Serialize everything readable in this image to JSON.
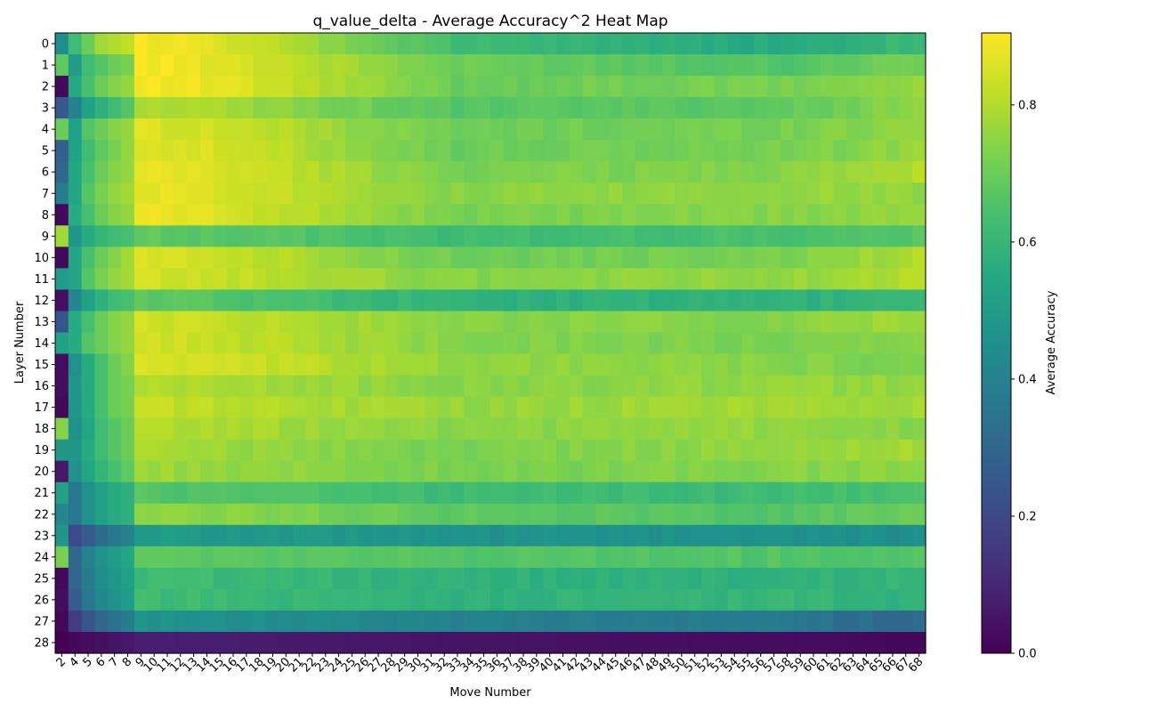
{
  "chart_data": {
    "type": "heatmap",
    "title": "q_value_delta - Average Accuracy^2 Heat Map",
    "xlabel": "Move Number",
    "ylabel": "Layer Number",
    "x_categories": [
      "2",
      "4",
      "5",
      "6",
      "7",
      "8",
      "9",
      "10",
      "11",
      "12",
      "13",
      "14",
      "15",
      "16",
      "17",
      "18",
      "19",
      "20",
      "21",
      "22",
      "23",
      "24",
      "25",
      "26",
      "27",
      "28",
      "29",
      "30",
      "31",
      "32",
      "33",
      "34",
      "35",
      "36",
      "37",
      "38",
      "39",
      "40",
      "41",
      "42",
      "43",
      "44",
      "45",
      "46",
      "47",
      "48",
      "49",
      "50",
      "51",
      "52",
      "53",
      "54",
      "55",
      "56",
      "57",
      "58",
      "59",
      "60",
      "61",
      "62",
      "63",
      "64",
      "65",
      "66",
      "67",
      "68"
    ],
    "y_categories": [
      "0",
      "1",
      "2",
      "3",
      "4",
      "5",
      "6",
      "7",
      "8",
      "9",
      "10",
      "11",
      "12",
      "13",
      "14",
      "15",
      "16",
      "17",
      "18",
      "19",
      "20",
      "21",
      "22",
      "23",
      "24",
      "25",
      "26",
      "27",
      "28"
    ],
    "colorbar": {
      "label": "Average Accuracy",
      "range": [
        0.0,
        0.905
      ],
      "ticks": [
        "0.0",
        "0.2",
        "0.4",
        "0.6",
        "0.8"
      ],
      "colormap": "viridis"
    },
    "row_profiles": [
      {
        "layer": "0",
        "col2": 0.45,
        "col4": 0.62,
        "col5": 0.7,
        "col6": 0.78,
        "col7": 0.8,
        "col8": 0.82,
        "early": 0.9,
        "mid": 0.62,
        "late": 0.55,
        "end": 0.62
      },
      {
        "layer": "1",
        "col2": 0.68,
        "col4": 0.5,
        "col5": 0.62,
        "col6": 0.66,
        "col7": 0.7,
        "col8": 0.72,
        "early": 0.9,
        "mid": 0.7,
        "late": 0.66,
        "end": 0.72
      },
      {
        "layer": "2",
        "col2": 0.02,
        "col4": 0.55,
        "col5": 0.64,
        "col6": 0.7,
        "col7": 0.74,
        "col8": 0.76,
        "early": 0.9,
        "mid": 0.7,
        "late": 0.72,
        "end": 0.76
      },
      {
        "layer": "3",
        "col2": 0.25,
        "col4": 0.4,
        "col5": 0.52,
        "col6": 0.58,
        "col7": 0.62,
        "col8": 0.66,
        "early": 0.8,
        "mid": 0.66,
        "late": 0.68,
        "end": 0.76
      },
      {
        "layer": "4",
        "col2": 0.7,
        "col4": 0.52,
        "col5": 0.66,
        "col6": 0.7,
        "col7": 0.74,
        "col8": 0.76,
        "early": 0.86,
        "mid": 0.7,
        "late": 0.72,
        "end": 0.76
      },
      {
        "layer": "5",
        "col2": 0.28,
        "col4": 0.52,
        "col5": 0.62,
        "col6": 0.68,
        "col7": 0.72,
        "col8": 0.76,
        "early": 0.87,
        "mid": 0.7,
        "late": 0.72,
        "end": 0.76
      },
      {
        "layer": "6",
        "col2": 0.3,
        "col4": 0.54,
        "col5": 0.64,
        "col6": 0.7,
        "col7": 0.74,
        "col8": 0.76,
        "early": 0.88,
        "mid": 0.72,
        "late": 0.74,
        "end": 0.8
      },
      {
        "layer": "7",
        "col2": 0.38,
        "col4": 0.54,
        "col5": 0.66,
        "col6": 0.72,
        "col7": 0.76,
        "col8": 0.78,
        "early": 0.88,
        "mid": 0.74,
        "late": 0.76,
        "end": 0.76
      },
      {
        "layer": "8",
        "col2": 0.02,
        "col4": 0.56,
        "col5": 0.64,
        "col6": 0.7,
        "col7": 0.74,
        "col8": 0.76,
        "early": 0.88,
        "mid": 0.72,
        "late": 0.74,
        "end": 0.76
      },
      {
        "layer": "9",
        "col2": 0.78,
        "col4": 0.48,
        "col5": 0.56,
        "col6": 0.6,
        "col7": 0.62,
        "col8": 0.64,
        "early": 0.68,
        "mid": 0.62,
        "late": 0.64,
        "end": 0.66
      },
      {
        "layer": "10",
        "col2": 0.02,
        "col4": 0.54,
        "col5": 0.64,
        "col6": 0.7,
        "col7": 0.74,
        "col8": 0.78,
        "early": 0.86,
        "mid": 0.7,
        "late": 0.72,
        "end": 0.8
      },
      {
        "layer": "11",
        "col2": 0.5,
        "col4": 0.54,
        "col5": 0.66,
        "col6": 0.72,
        "col7": 0.76,
        "col8": 0.78,
        "early": 0.84,
        "mid": 0.74,
        "late": 0.76,
        "end": 0.8
      },
      {
        "layer": "12",
        "col2": 0.04,
        "col4": 0.42,
        "col5": 0.52,
        "col6": 0.58,
        "col7": 0.62,
        "col8": 0.64,
        "early": 0.68,
        "mid": 0.58,
        "late": 0.58,
        "end": 0.6
      },
      {
        "layer": "13",
        "col2": 0.24,
        "col4": 0.56,
        "col5": 0.64,
        "col6": 0.7,
        "col7": 0.74,
        "col8": 0.76,
        "early": 0.84,
        "mid": 0.74,
        "late": 0.74,
        "end": 0.78
      },
      {
        "layer": "14",
        "col2": 0.52,
        "col4": 0.56,
        "col5": 0.66,
        "col6": 0.7,
        "col7": 0.74,
        "col8": 0.76,
        "early": 0.84,
        "mid": 0.74,
        "late": 0.72,
        "end": 0.74
      },
      {
        "layer": "15",
        "col2": 0.03,
        "col4": 0.46,
        "col5": 0.56,
        "col6": 0.64,
        "col7": 0.7,
        "col8": 0.74,
        "early": 0.85,
        "mid": 0.76,
        "late": 0.74,
        "end": 0.72
      },
      {
        "layer": "16",
        "col2": 0.03,
        "col4": 0.48,
        "col5": 0.56,
        "col6": 0.64,
        "col7": 0.7,
        "col8": 0.72,
        "early": 0.8,
        "mid": 0.74,
        "late": 0.76,
        "end": 0.76
      },
      {
        "layer": "17",
        "col2": 0.02,
        "col4": 0.48,
        "col5": 0.56,
        "col6": 0.64,
        "col7": 0.7,
        "col8": 0.72,
        "early": 0.82,
        "mid": 0.76,
        "late": 0.78,
        "end": 0.78
      },
      {
        "layer": "18",
        "col2": 0.74,
        "col4": 0.46,
        "col5": 0.54,
        "col6": 0.62,
        "col7": 0.66,
        "col8": 0.7,
        "early": 0.8,
        "mid": 0.74,
        "late": 0.76,
        "end": 0.74
      },
      {
        "layer": "19",
        "col2": 0.48,
        "col4": 0.48,
        "col5": 0.56,
        "col6": 0.62,
        "col7": 0.66,
        "col8": 0.7,
        "early": 0.78,
        "mid": 0.72,
        "late": 0.76,
        "end": 0.78
      },
      {
        "layer": "20",
        "col2": 0.06,
        "col4": 0.46,
        "col5": 0.54,
        "col6": 0.6,
        "col7": 0.64,
        "col8": 0.68,
        "early": 0.77,
        "mid": 0.72,
        "late": 0.74,
        "end": 0.76
      },
      {
        "layer": "21",
        "col2": 0.52,
        "col4": 0.36,
        "col5": 0.46,
        "col6": 0.52,
        "col7": 0.56,
        "col8": 0.58,
        "early": 0.66,
        "mid": 0.62,
        "late": 0.62,
        "end": 0.64
      },
      {
        "layer": "22",
        "col2": 0.42,
        "col4": 0.36,
        "col5": 0.46,
        "col6": 0.52,
        "col7": 0.56,
        "col8": 0.58,
        "early": 0.76,
        "mid": 0.68,
        "late": 0.66,
        "end": 0.7
      },
      {
        "layer": "23",
        "col2": 0.48,
        "col4": 0.2,
        "col5": 0.26,
        "col6": 0.32,
        "col7": 0.36,
        "col8": 0.4,
        "early": 0.5,
        "mid": 0.46,
        "late": 0.46,
        "end": 0.44
      },
      {
        "layer": "24",
        "col2": 0.72,
        "col4": 0.3,
        "col5": 0.4,
        "col6": 0.46,
        "col7": 0.5,
        "col8": 0.54,
        "early": 0.68,
        "mid": 0.66,
        "late": 0.66,
        "end": 0.66
      },
      {
        "layer": "25",
        "col2": 0.02,
        "col4": 0.3,
        "col5": 0.38,
        "col6": 0.44,
        "col7": 0.48,
        "col8": 0.52,
        "early": 0.62,
        "mid": 0.58,
        "late": 0.58,
        "end": 0.6
      },
      {
        "layer": "26",
        "col2": 0.03,
        "col4": 0.26,
        "col5": 0.36,
        "col6": 0.42,
        "col7": 0.46,
        "col8": 0.5,
        "early": 0.62,
        "mid": 0.58,
        "late": 0.6,
        "end": 0.58
      },
      {
        "layer": "27",
        "col2": 0.02,
        "col4": 0.16,
        "col5": 0.24,
        "col6": 0.3,
        "col7": 0.34,
        "col8": 0.38,
        "early": 0.46,
        "mid": 0.4,
        "late": 0.36,
        "end": 0.3
      },
      {
        "layer": "28",
        "col2": 0.0,
        "col4": 0.02,
        "col5": 0.03,
        "col6": 0.04,
        "col7": 0.05,
        "col8": 0.06,
        "early": 0.08,
        "mid": 0.05,
        "late": 0.03,
        "end": 0.02
      }
    ]
  }
}
